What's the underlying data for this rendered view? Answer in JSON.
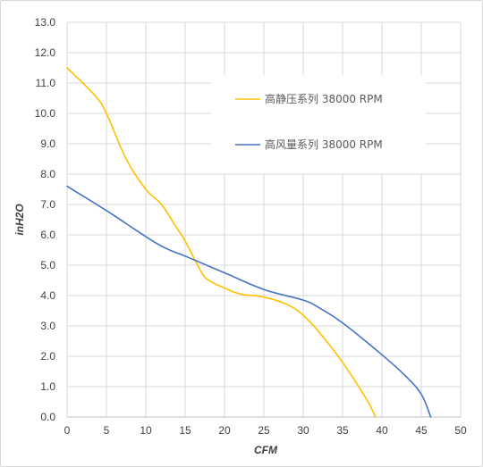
{
  "chart_data": {
    "type": "line",
    "title": "",
    "xlabel": "CFM",
    "ylabel": "inH2O",
    "xlim": [
      0,
      50
    ],
    "ylim": [
      0,
      13
    ],
    "x_ticks": [
      "0",
      "5",
      "10",
      "15",
      "20",
      "25",
      "30",
      "35",
      "40",
      "45",
      "50"
    ],
    "y_ticks": [
      "0.0",
      "1.0",
      "2.0",
      "3.0",
      "4.0",
      "5.0",
      "6.0",
      "7.0",
      "8.0",
      "9.0",
      "10.0",
      "11.0",
      "12.0",
      "13.0"
    ],
    "grid": true,
    "legend_position": "top-right",
    "series": [
      {
        "name": "高静压系列 38000 RPM",
        "color": "#FFC000",
        "x": [
          0,
          3.5,
          5,
          7.5,
          10,
          12,
          14,
          15,
          17,
          18,
          20,
          22,
          25,
          28,
          30,
          32,
          35,
          38,
          39.2
        ],
        "y": [
          11.5,
          10.6,
          10.0,
          8.5,
          7.5,
          7.0,
          6.2,
          5.8,
          4.8,
          4.5,
          4.25,
          4.05,
          3.95,
          3.7,
          3.35,
          2.8,
          1.8,
          0.6,
          0.0
        ]
      },
      {
        "name": "高风量系列 38000 RPM",
        "color": "#4472C4",
        "x": [
          0,
          5,
          11.5,
          15,
          20,
          25,
          30,
          32,
          35,
          40,
          43,
          45,
          46.2
        ],
        "y": [
          7.6,
          6.8,
          5.7,
          5.3,
          4.75,
          4.2,
          3.85,
          3.6,
          3.1,
          2.05,
          1.35,
          0.75,
          0.0
        ]
      }
    ]
  }
}
